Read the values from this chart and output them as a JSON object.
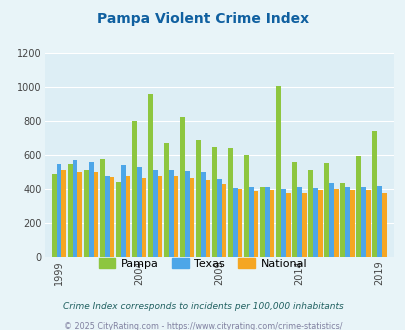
{
  "title": "Pampa Violent Crime Index",
  "title_color": "#1060a0",
  "background_color": "#e8f4f8",
  "plot_bg_color": "#ddeef5",
  "years": [
    1999,
    2000,
    2001,
    2002,
    2003,
    2004,
    2005,
    2006,
    2007,
    2008,
    2009,
    2010,
    2011,
    2012,
    2013,
    2014,
    2015,
    2016,
    2017,
    2018,
    2019,
    2020
  ],
  "pampa": [
    490,
    550,
    515,
    580,
    440,
    800,
    960,
    670,
    825,
    690,
    650,
    640,
    600,
    410,
    1005,
    560,
    510,
    555,
    435,
    595,
    740,
    null
  ],
  "texas": [
    550,
    570,
    560,
    480,
    540,
    530,
    515,
    510,
    505,
    500,
    460,
    405,
    410,
    410,
    400,
    410,
    405,
    435,
    410,
    410,
    420,
    null
  ],
  "national": [
    510,
    500,
    500,
    470,
    480,
    465,
    480,
    475,
    465,
    455,
    430,
    400,
    390,
    395,
    375,
    375,
    395,
    400,
    395,
    395,
    375,
    null
  ],
  "pampa_color": "#8dc63f",
  "texas_color": "#4da6e8",
  "national_color": "#f5a623",
  "ylim": [
    0,
    1200
  ],
  "yticks": [
    0,
    200,
    400,
    600,
    800,
    1000,
    1200
  ],
  "xtick_years": [
    1999,
    2004,
    2009,
    2014,
    2019
  ],
  "legend_labels": [
    "Pampa",
    "Texas",
    "National"
  ],
  "footnote1": "Crime Index corresponds to incidents per 100,000 inhabitants",
  "footnote2": "© 2025 CityRating.com - https://www.cityrating.com/crime-statistics/",
  "footnote1_color": "#206060",
  "footnote2_color": "#8080a0"
}
